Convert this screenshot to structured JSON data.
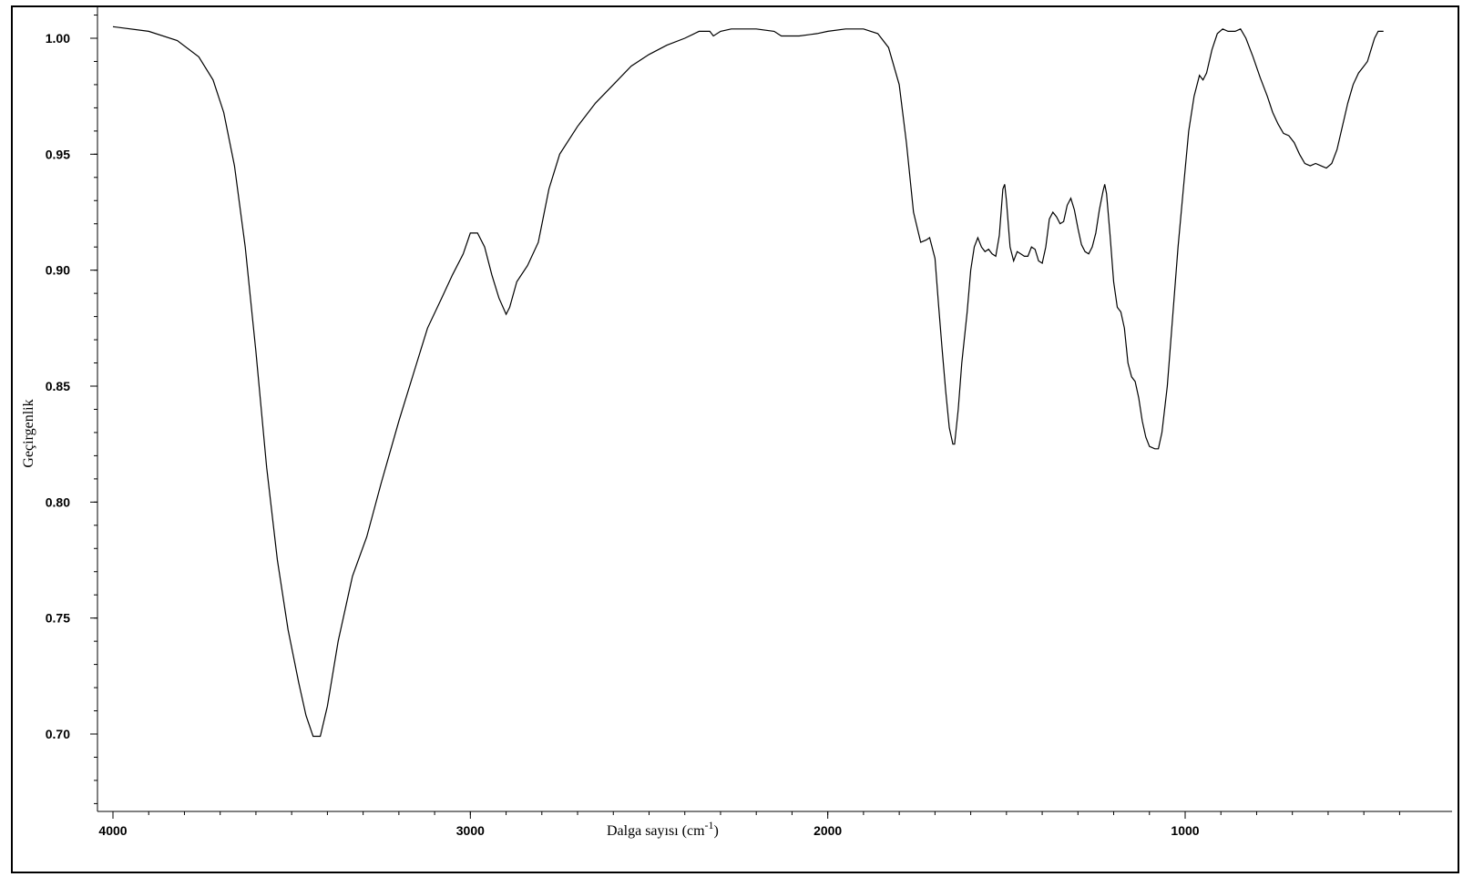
{
  "chart_data": {
    "type": "line",
    "title": "",
    "xlabel": "Dalga sayısı (cm",
    "xlabel_sup": "-1",
    "xlabel_suffix": ")",
    "ylabel": "Geçirgenlik",
    "xlim": [
      4000,
      400
    ],
    "ylim": [
      0.66,
      1.01
    ],
    "x_reversed": true,
    "grid": false,
    "x_ticks": [
      4000,
      3000,
      2000,
      1000
    ],
    "x_tick_labels": [
      "4000",
      "3000",
      "2000",
      "1000"
    ],
    "y_ticks": [
      0.7,
      0.75,
      0.8,
      0.85,
      0.9,
      0.95,
      1.0
    ],
    "y_tick_labels": [
      "0.70",
      "0.75",
      "0.80",
      "0.85",
      "0.90",
      "0.95",
      "1.00"
    ],
    "series": [
      {
        "color": "#000000",
        "points": [
          [
            4000,
            1.005
          ],
          [
            3900,
            1.003
          ],
          [
            3820,
            0.999
          ],
          [
            3760,
            0.992
          ],
          [
            3720,
            0.982
          ],
          [
            3690,
            0.968
          ],
          [
            3660,
            0.945
          ],
          [
            3630,
            0.91
          ],
          [
            3600,
            0.865
          ],
          [
            3570,
            0.815
          ],
          [
            3540,
            0.775
          ],
          [
            3510,
            0.745
          ],
          [
            3480,
            0.722
          ],
          [
            3460,
            0.708
          ],
          [
            3440,
            0.699
          ],
          [
            3420,
            0.699
          ],
          [
            3400,
            0.712
          ],
          [
            3370,
            0.74
          ],
          [
            3330,
            0.768
          ],
          [
            3290,
            0.785
          ],
          [
            3250,
            0.808
          ],
          [
            3200,
            0.835
          ],
          [
            3150,
            0.86
          ],
          [
            3120,
            0.875
          ],
          [
            3080,
            0.888
          ],
          [
            3050,
            0.898
          ],
          [
            3020,
            0.907
          ],
          [
            3000,
            0.916
          ],
          [
            2980,
            0.916
          ],
          [
            2960,
            0.91
          ],
          [
            2940,
            0.898
          ],
          [
            2920,
            0.888
          ],
          [
            2900,
            0.881
          ],
          [
            2890,
            0.884
          ],
          [
            2870,
            0.895
          ],
          [
            2840,
            0.902
          ],
          [
            2810,
            0.912
          ],
          [
            2780,
            0.935
          ],
          [
            2750,
            0.95
          ],
          [
            2700,
            0.962
          ],
          [
            2650,
            0.972
          ],
          [
            2600,
            0.98
          ],
          [
            2550,
            0.988
          ],
          [
            2500,
            0.993
          ],
          [
            2450,
            0.997
          ],
          [
            2400,
            1.0
          ],
          [
            2360,
            1.003
          ],
          [
            2330,
            1.003
          ],
          [
            2320,
            1.001
          ],
          [
            2300,
            1.003
          ],
          [
            2270,
            1.004
          ],
          [
            2200,
            1.004
          ],
          [
            2150,
            1.003
          ],
          [
            2130,
            1.001
          ],
          [
            2080,
            1.001
          ],
          [
            2030,
            1.002
          ],
          [
            2000,
            1.003
          ],
          [
            1950,
            1.004
          ],
          [
            1900,
            1.004
          ],
          [
            1860,
            1.002
          ],
          [
            1830,
            0.996
          ],
          [
            1800,
            0.98
          ],
          [
            1780,
            0.955
          ],
          [
            1760,
            0.925
          ],
          [
            1740,
            0.912
          ],
          [
            1725,
            0.913
          ],
          [
            1715,
            0.914
          ],
          [
            1700,
            0.905
          ],
          [
            1690,
            0.885
          ],
          [
            1680,
            0.866
          ],
          [
            1670,
            0.848
          ],
          [
            1660,
            0.832
          ],
          [
            1650,
            0.825
          ],
          [
            1645,
            0.825
          ],
          [
            1635,
            0.84
          ],
          [
            1625,
            0.86
          ],
          [
            1610,
            0.882
          ],
          [
            1600,
            0.9
          ],
          [
            1590,
            0.91
          ],
          [
            1580,
            0.914
          ],
          [
            1570,
            0.91
          ],
          [
            1560,
            0.908
          ],
          [
            1550,
            0.909
          ],
          [
            1540,
            0.907
          ],
          [
            1530,
            0.906
          ],
          [
            1520,
            0.915
          ],
          [
            1510,
            0.935
          ],
          [
            1505,
            0.937
          ],
          [
            1500,
            0.93
          ],
          [
            1490,
            0.91
          ],
          [
            1480,
            0.904
          ],
          [
            1470,
            0.908
          ],
          [
            1460,
            0.907
          ],
          [
            1450,
            0.906
          ],
          [
            1440,
            0.906
          ],
          [
            1430,
            0.91
          ],
          [
            1420,
            0.909
          ],
          [
            1410,
            0.904
          ],
          [
            1400,
            0.903
          ],
          [
            1390,
            0.91
          ],
          [
            1380,
            0.922
          ],
          [
            1370,
            0.925
          ],
          [
            1360,
            0.923
          ],
          [
            1350,
            0.92
          ],
          [
            1340,
            0.921
          ],
          [
            1330,
            0.928
          ],
          [
            1320,
            0.931
          ],
          [
            1310,
            0.926
          ],
          [
            1300,
            0.918
          ],
          [
            1290,
            0.911
          ],
          [
            1280,
            0.908
          ],
          [
            1270,
            0.907
          ],
          [
            1260,
            0.91
          ],
          [
            1250,
            0.916
          ],
          [
            1240,
            0.926
          ],
          [
            1230,
            0.934
          ],
          [
            1225,
            0.937
          ],
          [
            1220,
            0.933
          ],
          [
            1210,
            0.915
          ],
          [
            1200,
            0.895
          ],
          [
            1190,
            0.884
          ],
          [
            1180,
            0.882
          ],
          [
            1170,
            0.875
          ],
          [
            1160,
            0.86
          ],
          [
            1150,
            0.854
          ],
          [
            1140,
            0.852
          ],
          [
            1130,
            0.845
          ],
          [
            1120,
            0.835
          ],
          [
            1110,
            0.828
          ],
          [
            1100,
            0.824
          ],
          [
            1085,
            0.823
          ],
          [
            1075,
            0.823
          ],
          [
            1065,
            0.83
          ],
          [
            1050,
            0.85
          ],
          [
            1035,
            0.88
          ],
          [
            1020,
            0.91
          ],
          [
            1005,
            0.935
          ],
          [
            990,
            0.96
          ],
          [
            975,
            0.975
          ],
          [
            960,
            0.984
          ],
          [
            950,
            0.982
          ],
          [
            940,
            0.985
          ],
          [
            925,
            0.995
          ],
          [
            910,
            1.002
          ],
          [
            895,
            1.004
          ],
          [
            880,
            1.003
          ],
          [
            860,
            1.003
          ],
          [
            845,
            1.004
          ],
          [
            830,
            1.0
          ],
          [
            810,
            0.992
          ],
          [
            790,
            0.983
          ],
          [
            770,
            0.975
          ],
          [
            755,
            0.968
          ],
          [
            740,
            0.963
          ],
          [
            725,
            0.959
          ],
          [
            710,
            0.958
          ],
          [
            695,
            0.955
          ],
          [
            680,
            0.95
          ],
          [
            665,
            0.946
          ],
          [
            650,
            0.945
          ],
          [
            635,
            0.946
          ],
          [
            620,
            0.945
          ],
          [
            605,
            0.944
          ],
          [
            590,
            0.946
          ],
          [
            575,
            0.952
          ],
          [
            560,
            0.962
          ],
          [
            545,
            0.972
          ],
          [
            530,
            0.98
          ],
          [
            515,
            0.985
          ],
          [
            500,
            0.988
          ],
          [
            490,
            0.99
          ],
          [
            480,
            0.995
          ],
          [
            470,
            1.0
          ],
          [
            460,
            1.003
          ],
          [
            445,
            1.003
          ]
        ]
      }
    ]
  }
}
